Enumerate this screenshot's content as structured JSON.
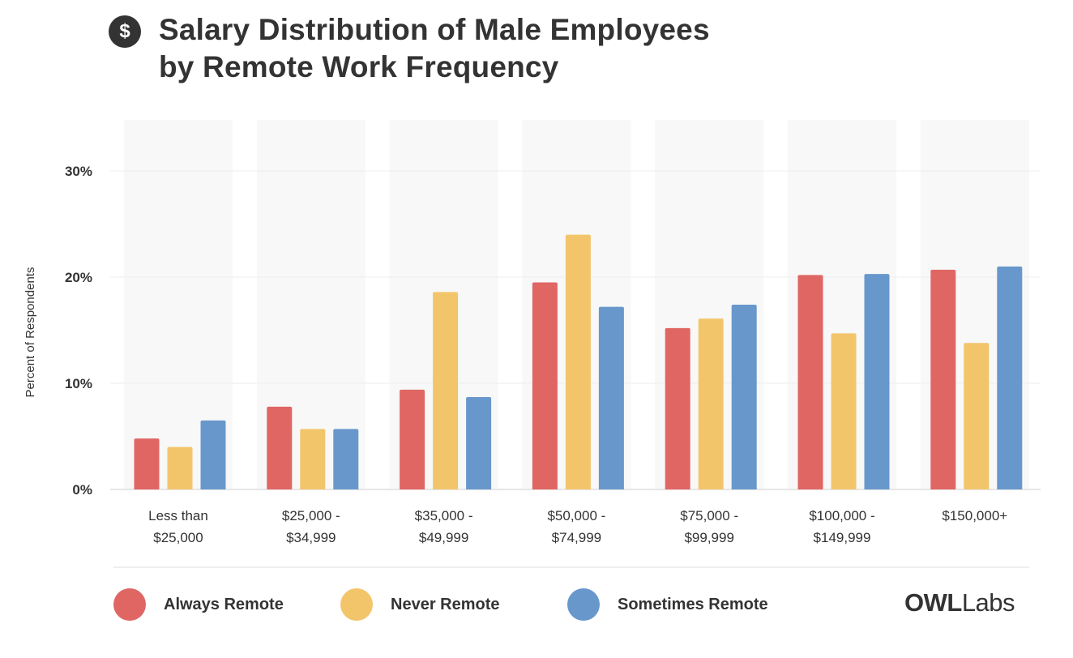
{
  "header": {
    "icon": "dollar-icon",
    "title_line1": "Salary Distribution of Male Employees",
    "title_line2": "by Remote Work Frequency"
  },
  "chart_data": {
    "type": "bar",
    "title": "Salary Distribution of Male Employees by Remote Work Frequency",
    "xlabel": "",
    "ylabel": "Percent of Respondents",
    "ylim": [
      0,
      34
    ],
    "yticks": [
      0,
      10,
      20,
      30
    ],
    "ytick_labels": [
      "0%",
      "10%",
      "20%",
      "30%"
    ],
    "grid": true,
    "categories": [
      [
        "Less than",
        "$25,000"
      ],
      [
        "$25,000 -",
        "$34,999"
      ],
      [
        "$35,000 -",
        "$49,999"
      ],
      [
        "$50,000 -",
        "$74,999"
      ],
      [
        "$75,000 -",
        "$99,999"
      ],
      [
        "$100,000 -",
        "$149,999"
      ],
      [
        "$150,000+"
      ]
    ],
    "series": [
      {
        "name": "Always Remote",
        "color": "#e06664",
        "values": [
          4.8,
          7.8,
          9.4,
          19.5,
          15.2,
          20.2,
          20.7
        ]
      },
      {
        "name": "Never Remote",
        "color": "#f3c56b",
        "values": [
          4.0,
          5.7,
          18.6,
          24.0,
          16.1,
          14.7,
          13.8
        ]
      },
      {
        "name": "Sometimes Remote",
        "color": "#6897cc",
        "values": [
          6.5,
          5.7,
          8.7,
          17.2,
          17.4,
          20.3,
          21.0
        ]
      }
    ],
    "legend_position": "bottom"
  },
  "legend": {
    "items": [
      {
        "label": "Always Remote",
        "color": "#e06664"
      },
      {
        "label": "Never Remote",
        "color": "#f3c56b"
      },
      {
        "label": "Sometimes Remote",
        "color": "#6897cc"
      }
    ]
  },
  "logo": {
    "owl": "OWL",
    "labs": "Labs"
  }
}
